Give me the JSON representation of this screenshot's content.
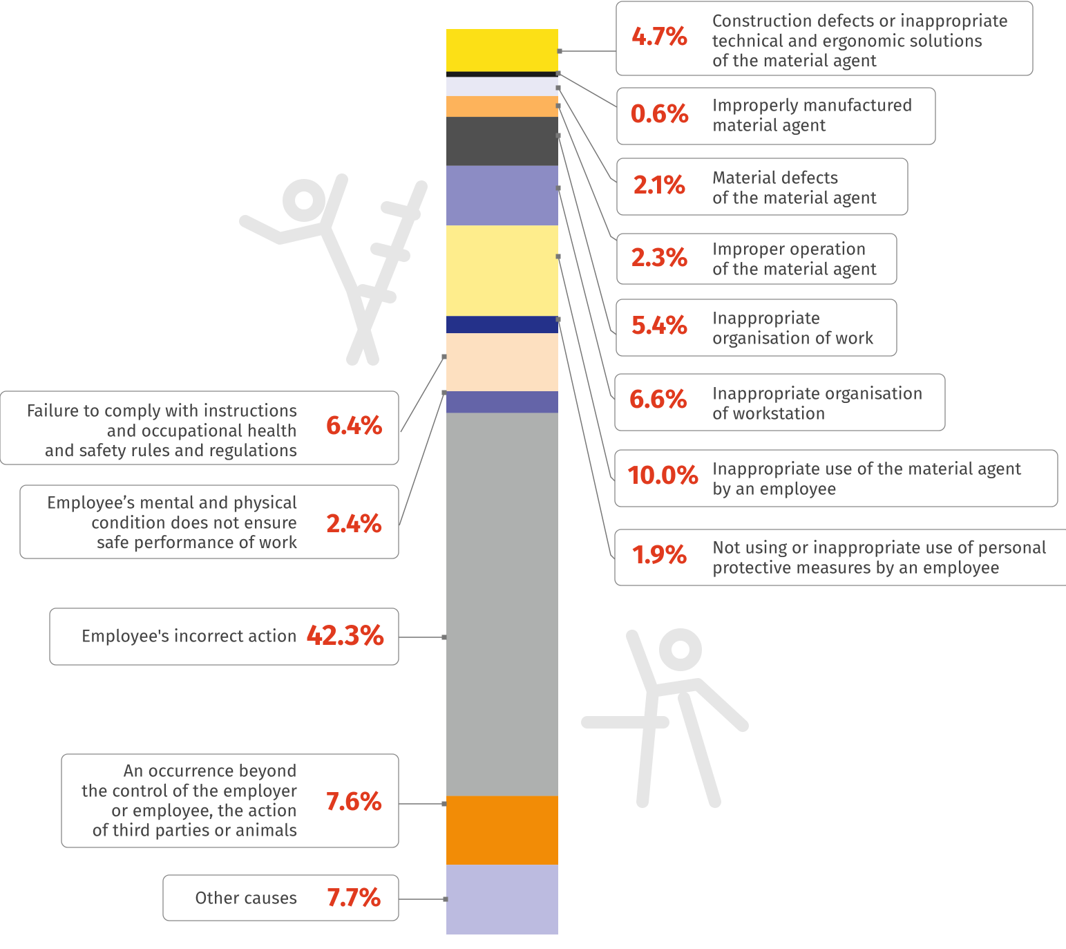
{
  "chart_data": {
    "type": "stacked-bar",
    "categories": [
      [
        "Construction defects or inappropriate",
        "technical and ergonomic solutions",
        "of the material agent"
      ],
      [
        "Improperly manufactured",
        "material agent"
      ],
      [
        "Material defects",
        "of the material agent"
      ],
      [
        "Improper operation",
        "of the material agent"
      ],
      [
        "Inappropriate",
        "organisation of work"
      ],
      [
        "Inappropriate organisation",
        "of workstation"
      ],
      [
        "Inappropriate use of the material agent",
        "by an employee"
      ],
      [
        "Not using or inappropriate use of personal",
        "protective measures by an employee"
      ],
      [
        "Failure to comply with instructions",
        "and occupational health",
        "and safety rules and regulations"
      ],
      [
        "Employee’s mental and physical",
        "condition does not ensure",
        "safe performance of work"
      ],
      [
        "Employee's incorrect action"
      ],
      [
        "An occurrence beyond",
        "the control of the employer",
        "or employee, the action",
        "of third parties or animals"
      ],
      [
        "Other causes"
      ]
    ],
    "values": [
      4.7,
      0.6,
      2.1,
      2.3,
      5.4,
      6.6,
      10.0,
      1.9,
      6.4,
      2.4,
      42.3,
      7.6,
      7.7
    ],
    "value_labels": [
      "4.7%",
      "0.6%",
      "2.1%",
      "2.3%",
      "5.4%",
      "6.6%",
      "10.0%",
      "1.9%",
      "6.4%",
      "2.4%",
      "42.3%",
      "7.6%",
      "7.7%"
    ],
    "colors": [
      "#fce016",
      "#1a1a1a",
      "#e8e8f4",
      "#fdb35b",
      "#505050",
      "#8c8cc4",
      "#feed8c",
      "#24318a",
      "#fde0c0",
      "#6464a8",
      "#aeb0af",
      "#f28c06",
      "#bcbbe0"
    ]
  }
}
